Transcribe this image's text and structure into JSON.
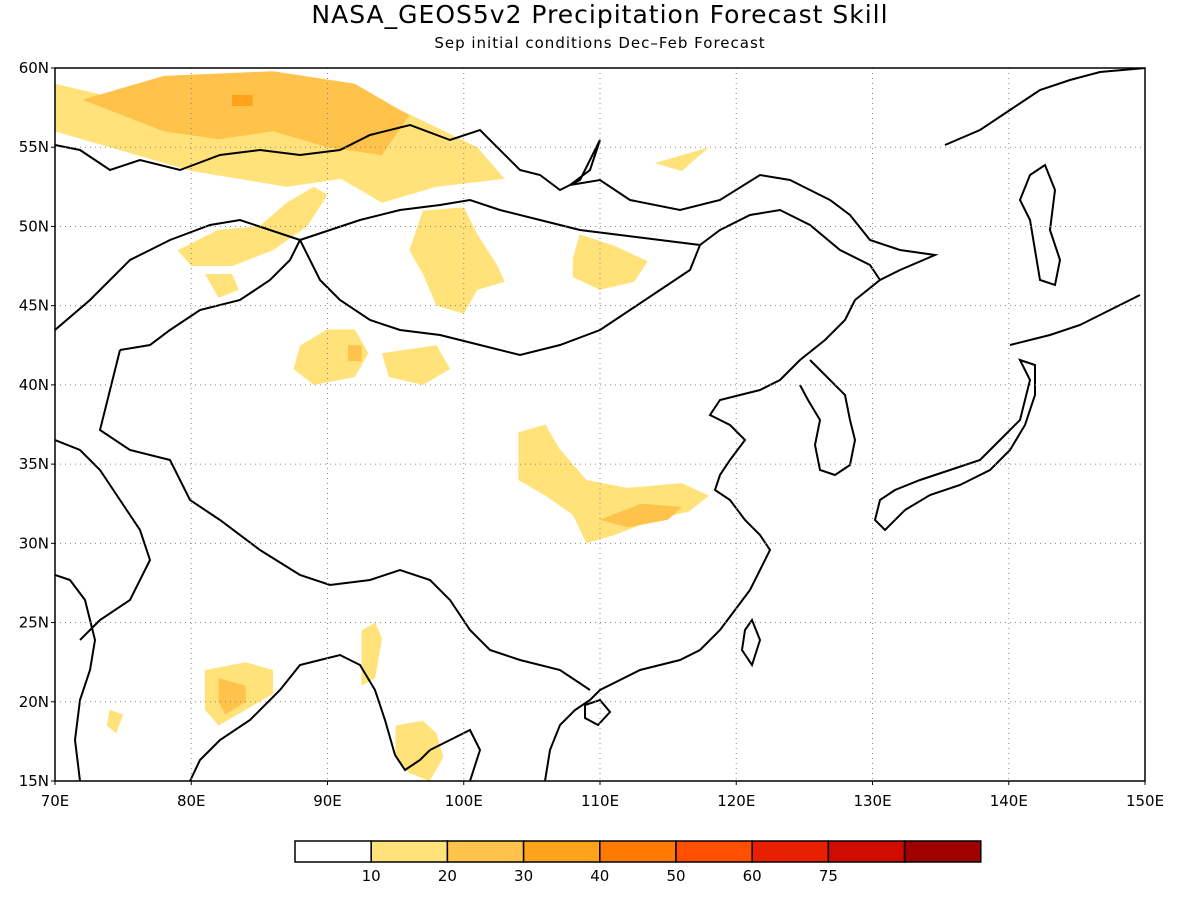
{
  "title": "NASA_GEOS5v2 Precipitation Forecast Skill",
  "subtitle": "Sep initial conditions  Dec–Feb Forecast",
  "lat_labels": [
    "60N",
    "55N",
    "50N",
    "45N",
    "40N",
    "35N",
    "30N",
    "25N",
    "20N",
    "15N"
  ],
  "lon_labels": [
    "70E",
    "80E",
    "90E",
    "100E",
    "110E",
    "120E",
    "130E",
    "140E",
    "150E"
  ],
  "colorbar": {
    "labels": [
      "10",
      "20",
      "30",
      "40",
      "50",
      "60",
      "75"
    ],
    "colors": [
      "#ffffff",
      "#ffe37a",
      "#ffc24a",
      "#ffa31a",
      "#ff7a00",
      "#ff4f00",
      "#e82000",
      "#d00c00",
      "#a00000"
    ]
  },
  "regions": [
    {
      "name": "siberia-west",
      "level": 1,
      "poly": [
        [
          70,
          59
        ],
        [
          75,
          58
        ],
        [
          82,
          59
        ],
        [
          90,
          58
        ],
        [
          95,
          57.5
        ],
        [
          101,
          55
        ],
        [
          103,
          53
        ],
        [
          98,
          52.5
        ],
        [
          94,
          51.5
        ],
        [
          91,
          53
        ],
        [
          87,
          52.5
        ],
        [
          80,
          53.5
        ],
        [
          76,
          54.5
        ],
        [
          70,
          56
        ]
      ]
    },
    {
      "name": "siberia-core",
      "level": 2,
      "poly": [
        [
          72,
          58
        ],
        [
          78,
          59.5
        ],
        [
          86,
          59.8
        ],
        [
          92,
          59
        ],
        [
          96,
          57
        ],
        [
          94,
          54.5
        ],
        [
          90,
          55
        ],
        [
          86,
          56
        ],
        [
          82,
          55.5
        ],
        [
          78,
          56
        ]
      ]
    },
    {
      "name": "siberia-spot",
      "level": 3,
      "poly": [
        [
          83,
          58.3
        ],
        [
          84.5,
          58.3
        ],
        [
          84.5,
          57.6
        ],
        [
          83,
          57.6
        ]
      ]
    },
    {
      "name": "altai",
      "level": 1,
      "poly": [
        [
          87,
          51.5
        ],
        [
          89,
          52.5
        ],
        [
          90,
          52
        ],
        [
          88.5,
          50
        ],
        [
          86,
          48.5
        ],
        [
          83,
          47.5
        ],
        [
          80,
          47.5
        ],
        [
          79,
          48.5
        ],
        [
          82,
          49.8
        ],
        [
          85,
          50
        ]
      ]
    },
    {
      "name": "kazakh-east",
      "level": 1,
      "poly": [
        [
          81,
          47
        ],
        [
          83,
          47
        ],
        [
          83.5,
          46
        ],
        [
          82,
          45.5
        ]
      ]
    },
    {
      "name": "mongolia-west",
      "level": 1,
      "poly": [
        [
          97,
          51
        ],
        [
          100,
          51.2
        ],
        [
          101,
          49.5
        ],
        [
          102.5,
          47.5
        ],
        [
          103,
          46.5
        ],
        [
          101,
          46
        ],
        [
          100,
          44.5
        ],
        [
          98,
          45
        ],
        [
          97,
          47
        ],
        [
          96,
          48.5
        ]
      ]
    },
    {
      "name": "tarim-north",
      "level": 1,
      "poly": [
        [
          88,
          42.5
        ],
        [
          90,
          43.5
        ],
        [
          92,
          43.5
        ],
        [
          93,
          42
        ],
        [
          92,
          40.5
        ],
        [
          89,
          40
        ],
        [
          87.5,
          41
        ]
      ]
    },
    {
      "name": "tarim-spot",
      "level": 2,
      "poly": [
        [
          91.5,
          42.5
        ],
        [
          92.5,
          42.5
        ],
        [
          92.5,
          41.5
        ],
        [
          91.5,
          41.5
        ]
      ]
    },
    {
      "name": "qaidam",
      "level": 1,
      "poly": [
        [
          94,
          42
        ],
        [
          98,
          42.5
        ],
        [
          99,
          41
        ],
        [
          97,
          40
        ],
        [
          94.5,
          40.5
        ]
      ]
    },
    {
      "name": "baikal-south",
      "level": 1,
      "poly": [
        [
          108.5,
          49.5
        ],
        [
          111,
          48.8
        ],
        [
          113.5,
          47.8
        ],
        [
          112.5,
          46.5
        ],
        [
          110,
          46
        ],
        [
          108,
          46.8
        ],
        [
          108,
          48
        ]
      ]
    },
    {
      "name": "loess",
      "level": 1,
      "poly": [
        [
          104,
          37
        ],
        [
          106,
          37.5
        ],
        [
          107,
          36
        ],
        [
          109,
          34
        ],
        [
          112,
          33.5
        ],
        [
          116,
          33.8
        ],
        [
          118,
          33
        ],
        [
          116.5,
          32
        ],
        [
          114,
          31.5
        ],
        [
          111,
          30.5
        ],
        [
          109,
          30
        ],
        [
          108,
          31.8
        ],
        [
          106,
          33
        ],
        [
          104,
          34
        ]
      ]
    },
    {
      "name": "hubei",
      "level": 2,
      "poly": [
        [
          110,
          31.5
        ],
        [
          113,
          32.5
        ],
        [
          116,
          32.3
        ],
        [
          115,
          31.5
        ],
        [
          112,
          31
        ]
      ]
    },
    {
      "name": "bay-bengal-east",
      "level": 1,
      "poly": [
        [
          92.5,
          24.5
        ],
        [
          93.5,
          25
        ],
        [
          94,
          24
        ],
        [
          93.5,
          21.5
        ],
        [
          92.5,
          21
        ]
      ]
    },
    {
      "name": "myanmar-south",
      "level": 1,
      "poly": [
        [
          95,
          18.5
        ],
        [
          97,
          18.8
        ],
        [
          98,
          18
        ],
        [
          98.5,
          16.5
        ],
        [
          97.5,
          15
        ],
        [
          96,
          15.5
        ],
        [
          95,
          16.5
        ]
      ]
    },
    {
      "name": "india-east",
      "level": 1,
      "poly": [
        [
          81,
          22
        ],
        [
          84,
          22.5
        ],
        [
          86,
          22
        ],
        [
          86,
          20.5
        ],
        [
          84,
          19.5
        ],
        [
          82,
          18.5
        ],
        [
          81,
          19.5
        ]
      ]
    },
    {
      "name": "india-east-core",
      "level": 2,
      "poly": [
        [
          82,
          21.5
        ],
        [
          84,
          21
        ],
        [
          84,
          20
        ],
        [
          82.5,
          19.2
        ],
        [
          82,
          20
        ]
      ]
    },
    {
      "name": "india-west",
      "level": 1,
      "poly": [
        [
          74,
          19.5
        ],
        [
          75,
          19.2
        ],
        [
          74.5,
          18
        ],
        [
          73.8,
          18.5
        ]
      ]
    },
    {
      "name": "amur",
      "level": 1,
      "poly": [
        [
          114,
          54
        ],
        [
          118,
          55
        ],
        [
          116,
          53.5
        ]
      ]
    }
  ]
}
